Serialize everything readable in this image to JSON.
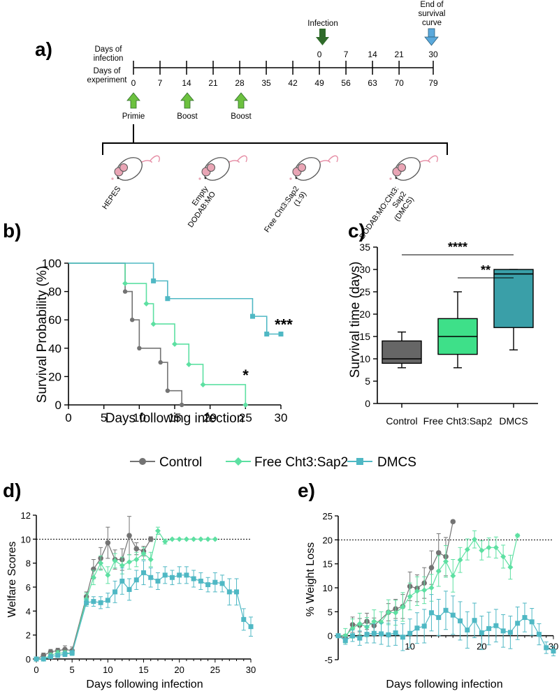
{
  "colors": {
    "control": "#737373",
    "free": "#5de0a2",
    "dmcs": "#4fb8c4",
    "free_box": "#3ee089",
    "dmcs_box": "#3a9fa8",
    "control_box": "#666666",
    "arrow_green": "#6cc13f",
    "arrow_dark": "#2f6b2a",
    "arrow_blue": "#5aa9dc"
  },
  "panel_a": {
    "label": "a)",
    "row1_label_1": "Days of",
    "row1_label_2": "infection",
    "row2_label_1": "Days of",
    "row2_label_2": "experiment",
    "infection_label": "Infection",
    "end_label_1": "End of",
    "end_label_2": "survival",
    "end_label_3": "curve",
    "days_infection": [
      "0",
      "7",
      "14",
      "21",
      "30"
    ],
    "days_experiment": [
      "0",
      "7",
      "14",
      "21",
      "28",
      "35",
      "42",
      "49",
      "56",
      "63",
      "70",
      "79"
    ],
    "immunizations": [
      "Primie",
      "Boost",
      "Boost"
    ],
    "groups": [
      {
        "lines": [
          "HEPES"
        ]
      },
      {
        "lines": [
          "Empty",
          "DODAB:MO"
        ]
      },
      {
        "lines": [
          "Free Cht3:Sap2",
          "(1:9)"
        ]
      },
      {
        "lines": [
          "DODAB:MO:Cht3:",
          "Sap2",
          "(DMCS)"
        ]
      }
    ]
  },
  "legend": {
    "control": "Control",
    "free": "Free Cht3:Sap2",
    "dmcs": "DMCS"
  },
  "chart_data": [
    {
      "id": "b",
      "panel_label": "b)",
      "type": "line",
      "subtype": "kaplan-meier",
      "xlabel": "Days following infection",
      "ylabel": "Survival Probability (%)",
      "xlim": [
        0,
        30
      ],
      "ylim": [
        0,
        100
      ],
      "xticks": [
        "0",
        "5",
        "10",
        "15",
        "20",
        "25",
        "30"
      ],
      "yticks": [
        "0",
        "20",
        "40",
        "60",
        "80",
        "100"
      ],
      "series": [
        {
          "name": "Control",
          "key": "control",
          "steps": [
            [
              0,
              100
            ],
            [
              8,
              80
            ],
            [
              9,
              60
            ],
            [
              10,
              40
            ],
            [
              13,
              30
            ],
            [
              14,
              10
            ],
            [
              16,
              0
            ]
          ]
        },
        {
          "name": "Free Cht3:Sap2",
          "key": "free",
          "steps": [
            [
              0,
              100
            ],
            [
              8,
              85.7
            ],
            [
              11,
              71.4
            ],
            [
              12,
              57.1
            ],
            [
              15,
              42.9
            ],
            [
              17,
              28.6
            ],
            [
              19,
              14.3
            ],
            [
              25,
              0
            ]
          ]
        },
        {
          "name": "DMCS",
          "key": "dmcs",
          "steps": [
            [
              0,
              100
            ],
            [
              12,
              87.5
            ],
            [
              14,
              75
            ],
            [
              26,
              62.5
            ],
            [
              28,
              50
            ],
            [
              30,
              50
            ]
          ]
        }
      ],
      "annotations": [
        {
          "text": "*",
          "x": 24,
          "y": 14.3
        },
        {
          "text": "***",
          "x": 30,
          "y": 50
        }
      ]
    },
    {
      "id": "c",
      "panel_label": "c)",
      "type": "box",
      "ylabel": "Survival time (days)",
      "ylim": [
        0,
        35
      ],
      "yticks": [
        "0",
        "5",
        "10",
        "15",
        "20",
        "25",
        "30",
        "35"
      ],
      "categories": [
        "Control",
        "Free Cht3:Sap2",
        "DMCS"
      ],
      "boxes": [
        {
          "key": "control_box",
          "min": 8,
          "q1": 9,
          "median": 10,
          "q3": 14,
          "max": 16
        },
        {
          "key": "free_box",
          "min": 8,
          "q1": 11,
          "median": 15,
          "q3": 19,
          "max": 25
        },
        {
          "key": "dmcs_box",
          "min": 12,
          "q1": 17,
          "median": 29,
          "q3": 30,
          "max": 30
        }
      ],
      "significance": [
        {
          "text": "****",
          "from": 0,
          "to": 2
        },
        {
          "text": "**",
          "from": 1,
          "to": 2
        }
      ]
    },
    {
      "id": "d",
      "panel_label": "d)",
      "type": "line",
      "xlabel": "Days following infection",
      "ylabel": "Welfare Scores",
      "xlim": [
        0,
        30
      ],
      "ylim": [
        0,
        12
      ],
      "xticks": [
        "0",
        "5",
        "10",
        "15",
        "20",
        "25",
        "30"
      ],
      "yticks": [
        "0",
        "2",
        "4",
        "6",
        "8",
        "10",
        "12"
      ],
      "threshold": 10,
      "series": [
        {
          "name": "Control",
          "key": "control",
          "marker": "circle",
          "points": [
            [
              0,
              0
            ],
            [
              1,
              0.3
            ],
            [
              2,
              0.6
            ],
            [
              3,
              0.7
            ],
            [
              4,
              0.8
            ],
            [
              5,
              0.7
            ],
            [
              7,
              5.2
            ],
            [
              8,
              7.5
            ],
            [
              9,
              8.4
            ],
            [
              10,
              9.7
            ],
            [
              11,
              8.3
            ],
            [
              12,
              8.3
            ],
            [
              13,
              10.3
            ],
            [
              14,
              9.2
            ],
            [
              15,
              9
            ],
            [
              16,
              10
            ]
          ],
          "err": [
            0.1,
            0.2,
            0.2,
            0.2,
            0.3,
            0.3,
            0.4,
            0.8,
            0.9,
            1.3,
            0.8,
            0.9,
            1.6,
            0.5,
            0.4,
            0.2
          ]
        },
        {
          "name": "Free Cht3:Sap2",
          "key": "free",
          "marker": "diamond",
          "points": [
            [
              0,
              0
            ],
            [
              1,
              0
            ],
            [
              2,
              0.3
            ],
            [
              3,
              0.5
            ],
            [
              4,
              0.5
            ],
            [
              5,
              0.5
            ],
            [
              7,
              5
            ],
            [
              8,
              6.8
            ],
            [
              9,
              8
            ],
            [
              10,
              7
            ],
            [
              11,
              8.2
            ],
            [
              12,
              7.8
            ],
            [
              13,
              8.1
            ],
            [
              14,
              8.3
            ],
            [
              15,
              8.8
            ],
            [
              16,
              8.3
            ],
            [
              17,
              10.7
            ],
            [
              18,
              9.8
            ],
            [
              19,
              10
            ],
            [
              20,
              10
            ],
            [
              21,
              10
            ],
            [
              22,
              10
            ],
            [
              23,
              10
            ],
            [
              24,
              10
            ],
            [
              25,
              10
            ]
          ],
          "err": [
            0,
            0.1,
            0.2,
            0.2,
            0.2,
            0.2,
            0.5,
            0.6,
            0.6,
            0.7,
            0.6,
            0.7,
            0.6,
            0.6,
            0.5,
            0.6,
            0.3,
            0.2,
            0,
            0,
            0,
            0,
            0,
            0,
            0
          ]
        },
        {
          "name": "DMCS",
          "key": "dmcs",
          "marker": "square",
          "points": [
            [
              0,
              0
            ],
            [
              1,
              0
            ],
            [
              2,
              0.2
            ],
            [
              3,
              0.3
            ],
            [
              4,
              0.4
            ],
            [
              5,
              0.5
            ],
            [
              7,
              4.7
            ],
            [
              8,
              4.8
            ],
            [
              9,
              4.7
            ],
            [
              10,
              4.9
            ],
            [
              11,
              5.6
            ],
            [
              12,
              6.5
            ],
            [
              13,
              5.8
            ],
            [
              14,
              6.6
            ],
            [
              15,
              7.2
            ],
            [
              16,
              6.8
            ],
            [
              17,
              6.5
            ],
            [
              18,
              7
            ],
            [
              19,
              6.8
            ],
            [
              20,
              7
            ],
            [
              21,
              7
            ],
            [
              22,
              6.7
            ],
            [
              23,
              6.5
            ],
            [
              24,
              6.2
            ],
            [
              25,
              6.4
            ],
            [
              26,
              6.3
            ],
            [
              27,
              5.6
            ],
            [
              28,
              5.6
            ],
            [
              29,
              3.3
            ],
            [
              30,
              2.7
            ]
          ],
          "err": [
            0,
            0,
            0.1,
            0.1,
            0.2,
            0.2,
            0.3,
            0.4,
            0.5,
            0.6,
            0.9,
            1.1,
            0.9,
            0.8,
            1,
            0.8,
            0.7,
            0.7,
            0.6,
            0.7,
            0.7,
            0.7,
            0.7,
            0.6,
            0.8,
            0.7,
            1.1,
            1.1,
            0.9,
            0.8
          ]
        }
      ]
    },
    {
      "id": "e",
      "panel_label": "e)",
      "type": "line",
      "xlabel": "Days following infection",
      "ylabel": "% Weight Loss",
      "xlim": [
        0,
        30
      ],
      "ylim": [
        -5,
        25
      ],
      "xticks": [
        "10",
        "20",
        "30"
      ],
      "xtick_values": [
        10,
        20,
        30
      ],
      "yticks": [
        "-5",
        "0",
        "5",
        "10",
        "15",
        "20",
        "25"
      ],
      "threshold": 20,
      "series": [
        {
          "name": "Control",
          "key": "control",
          "marker": "circle",
          "points": [
            [
              0,
              0
            ],
            [
              1,
              -0.5
            ],
            [
              2,
              2.3
            ],
            [
              3,
              2.2
            ],
            [
              4,
              3
            ],
            [
              5,
              2.1
            ],
            [
              7,
              4.9
            ],
            [
              8,
              5.6
            ],
            [
              9,
              6.1
            ],
            [
              10,
              10.3
            ],
            [
              11,
              9.9
            ],
            [
              12,
              11
            ],
            [
              13,
              14.2
            ],
            [
              14,
              17.3
            ],
            [
              15,
              16.5
            ],
            [
              16,
              23.8
            ]
          ],
          "err": [
            0,
            0.8,
            1.6,
            1.4,
            1.7,
            1.6,
            1.8,
            2,
            2.5,
            3,
            2.8,
            3.2,
            3.5,
            4,
            4,
            0.3
          ]
        },
        {
          "name": "Free Cht3:Sap2",
          "key": "free",
          "marker": "diamond",
          "points": [
            [
              0,
              0
            ],
            [
              1,
              0
            ],
            [
              2,
              1.5
            ],
            [
              3,
              2.5
            ],
            [
              4,
              1.8
            ],
            [
              5,
              3
            ],
            [
              6,
              2.8
            ],
            [
              7,
              4.9
            ],
            [
              8,
              4.8
            ],
            [
              9,
              6
            ],
            [
              10,
              8.2
            ],
            [
              11,
              9.3
            ],
            [
              12,
              9.5
            ],
            [
              13,
              10
            ],
            [
              14,
              13.5
            ],
            [
              15,
              15.5
            ],
            [
              16,
              12.5
            ],
            [
              17,
              15.8
            ],
            [
              18,
              18
            ],
            [
              19,
              20.1
            ],
            [
              20,
              17.8
            ],
            [
              21,
              18.4
            ],
            [
              22,
              18.4
            ],
            [
              23,
              16.5
            ],
            [
              24,
              14.3
            ],
            [
              25,
              20.9
            ]
          ],
          "err": [
            0,
            1.5,
            2,
            2.2,
            2,
            2.4,
            2.2,
            2.6,
            2.6,
            3,
            2.8,
            3,
            2.8,
            2.8,
            3.2,
            3.3,
            3.4,
            2.6,
            2.2,
            1.8,
            2,
            2,
            2.2,
            2.4,
            2.5,
            0.3
          ]
        },
        {
          "name": "DMCS",
          "key": "dmcs",
          "marker": "square",
          "points": [
            [
              0,
              0
            ],
            [
              1,
              -1
            ],
            [
              2,
              0
            ],
            [
              3,
              -0.5
            ],
            [
              4,
              0.3
            ],
            [
              5,
              0.5
            ],
            [
              6,
              0.4
            ],
            [
              7,
              0.2
            ],
            [
              8,
              0.6
            ],
            [
              9,
              -0.3
            ],
            [
              10,
              0.5
            ],
            [
              11,
              1.6
            ],
            [
              12,
              2
            ],
            [
              13,
              4.8
            ],
            [
              14,
              3.8
            ],
            [
              15,
              5.3
            ],
            [
              16,
              4.3
            ],
            [
              17,
              3.1
            ],
            [
              18,
              1.2
            ],
            [
              19,
              3.2
            ],
            [
              20,
              0.6
            ],
            [
              21,
              1.5
            ],
            [
              22,
              2.1
            ],
            [
              23,
              1
            ],
            [
              24,
              0.7
            ],
            [
              25,
              2.6
            ],
            [
              26,
              3.8
            ],
            [
              27,
              2.9
            ],
            [
              28,
              0.3
            ],
            [
              29,
              -2.5
            ],
            [
              30,
              -3.2
            ]
          ],
          "err": [
            0,
            0.8,
            1.2,
            1.5,
            1.8,
            2,
            2.2,
            2.4,
            2.6,
            2.8,
            3,
            3.2,
            3.5,
            3.8,
            3.8,
            4,
            4,
            4,
            3.8,
            3.6,
            3.5,
            3.4,
            3.4,
            3.4,
            3.4,
            3.4,
            3,
            2.8,
            2.2,
            1.2,
            1
          ]
        }
      ]
    }
  ]
}
